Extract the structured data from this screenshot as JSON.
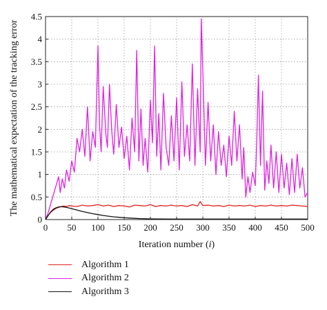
{
  "chart_data": {
    "type": "line",
    "xlabel": "Iteration number (",
    "xlabel_var": "i",
    "xlabel_close": ")",
    "ylabel": "The mathematical expectation of the tracking error",
    "xlim": [
      0,
      500
    ],
    "ylim": [
      0,
      4.5
    ],
    "xticks": [
      0,
      50,
      100,
      150,
      200,
      250,
      300,
      350,
      400,
      450,
      500
    ],
    "yticks": [
      0,
      0.5,
      1,
      1.5,
      2,
      2.5,
      3,
      3.5,
      4,
      4.5
    ],
    "xtick_labels": [
      "0",
      "50",
      "100",
      "150",
      "200",
      "250",
      "300",
      "350",
      "400",
      "450",
      "500"
    ],
    "ytick_labels": [
      "0",
      "0.5",
      "1",
      "1.5",
      "2",
      "2.5",
      "3",
      "3.5",
      "4",
      "4.5"
    ],
    "grid": true,
    "legend_position": "bottom-left, below plot",
    "series": [
      {
        "name": "Algorithm 1",
        "color": "#e0201c",
        "x": [
          0,
          5,
          10,
          15,
          20,
          25,
          30,
          35,
          40,
          45,
          50,
          60,
          70,
          80,
          90,
          100,
          110,
          120,
          130,
          140,
          150,
          160,
          170,
          180,
          190,
          200,
          210,
          220,
          230,
          240,
          250,
          260,
          270,
          280,
          290,
          295,
          300,
          310,
          320,
          330,
          340,
          350,
          360,
          370,
          380,
          390,
          400,
          410,
          420,
          430,
          440,
          450,
          460,
          470,
          480,
          490,
          500
        ],
        "values": [
          0,
          0.09,
          0.16,
          0.21,
          0.25,
          0.27,
          0.29,
          0.3,
          0.29,
          0.31,
          0.3,
          0.29,
          0.32,
          0.3,
          0.31,
          0.33,
          0.3,
          0.32,
          0.29,
          0.31,
          0.3,
          0.28,
          0.32,
          0.31,
          0.3,
          0.33,
          0.29,
          0.31,
          0.3,
          0.32,
          0.3,
          0.31,
          0.29,
          0.33,
          0.3,
          0.4,
          0.31,
          0.32,
          0.3,
          0.31,
          0.29,
          0.32,
          0.3,
          0.31,
          0.3,
          0.32,
          0.29,
          0.31,
          0.3,
          0.32,
          0.3,
          0.31,
          0.3,
          0.32,
          0.31,
          0.3,
          0.29
        ]
      },
      {
        "name": "Algorithm 2",
        "color": "#e020e0",
        "x": [
          0,
          5,
          10,
          15,
          20,
          25,
          28,
          32,
          36,
          40,
          45,
          50,
          55,
          60,
          65,
          70,
          75,
          80,
          85,
          90,
          95,
          100,
          103,
          106,
          110,
          115,
          118,
          122,
          126,
          130,
          135,
          140,
          145,
          150,
          155,
          160,
          165,
          170,
          174,
          178,
          182,
          186,
          190,
          195,
          200,
          204,
          208,
          212,
          216,
          220,
          225,
          230,
          235,
          240,
          245,
          250,
          255,
          260,
          265,
          270,
          275,
          280,
          285,
          290,
          295,
          297,
          300,
          305,
          310,
          315,
          320,
          325,
          330,
          335,
          340,
          345,
          350,
          355,
          360,
          365,
          370,
          375,
          378,
          382,
          386,
          390,
          395,
          400,
          403,
          406,
          410,
          414,
          418,
          422,
          426,
          430,
          435,
          440,
          445,
          450,
          455,
          460,
          465,
          470,
          475,
          480,
          485,
          490,
          495,
          500
        ],
        "values": [
          0,
          0.15,
          0.35,
          0.55,
          0.75,
          0.95,
          0.6,
          0.9,
          0.7,
          1.1,
          0.85,
          1.3,
          1.05,
          1.8,
          1.5,
          2.0,
          1.4,
          2.5,
          1.3,
          1.95,
          1.6,
          3.85,
          2.1,
          1.5,
          2.95,
          1.9,
          1.6,
          3.0,
          2.0,
          1.45,
          2.55,
          1.6,
          2.05,
          1.35,
          1.85,
          1.1,
          2.25,
          1.5,
          3.75,
          1.3,
          2.45,
          1.2,
          1.8,
          1.05,
          2.65,
          1.7,
          3.85,
          1.4,
          2.35,
          1.1,
          2.8,
          1.6,
          1.2,
          2.3,
          1.3,
          2.7,
          1.1,
          3.05,
          1.4,
          2.1,
          1.3,
          3.45,
          1.2,
          2.9,
          1.5,
          4.45,
          3.3,
          1.2,
          2.6,
          1.3,
          2.1,
          1.0,
          1.95,
          1.2,
          1.65,
          0.95,
          1.85,
          1.2,
          2.4,
          1.3,
          2.1,
          0.9,
          1.6,
          0.5,
          0.95,
          0.6,
          1.05,
          0.75,
          1.8,
          3.2,
          1.2,
          2.85,
          0.65,
          1.3,
          0.8,
          1.65,
          0.7,
          1.5,
          0.6,
          1.45,
          0.7,
          1.25,
          0.55,
          1.35,
          0.6,
          1.45,
          0.7,
          1.15,
          0.5,
          0.6
        ]
      },
      {
        "name": "Algorithm 3",
        "color": "#111111",
        "x": [
          0,
          5,
          10,
          15,
          20,
          25,
          30,
          35,
          40,
          45,
          50,
          60,
          70,
          80,
          90,
          100,
          110,
          120,
          130,
          140,
          150,
          160,
          170,
          180,
          200,
          220,
          240,
          260,
          280,
          300,
          350,
          400,
          450,
          500
        ],
        "values": [
          0,
          0.09,
          0.17,
          0.23,
          0.26,
          0.28,
          0.285,
          0.28,
          0.27,
          0.255,
          0.24,
          0.21,
          0.18,
          0.155,
          0.13,
          0.11,
          0.09,
          0.075,
          0.06,
          0.05,
          0.04,
          0.033,
          0.027,
          0.022,
          0.016,
          0.013,
          0.011,
          0.01,
          0.01,
          0.01,
          0.01,
          0.01,
          0.01,
          0.01
        ]
      }
    ]
  }
}
